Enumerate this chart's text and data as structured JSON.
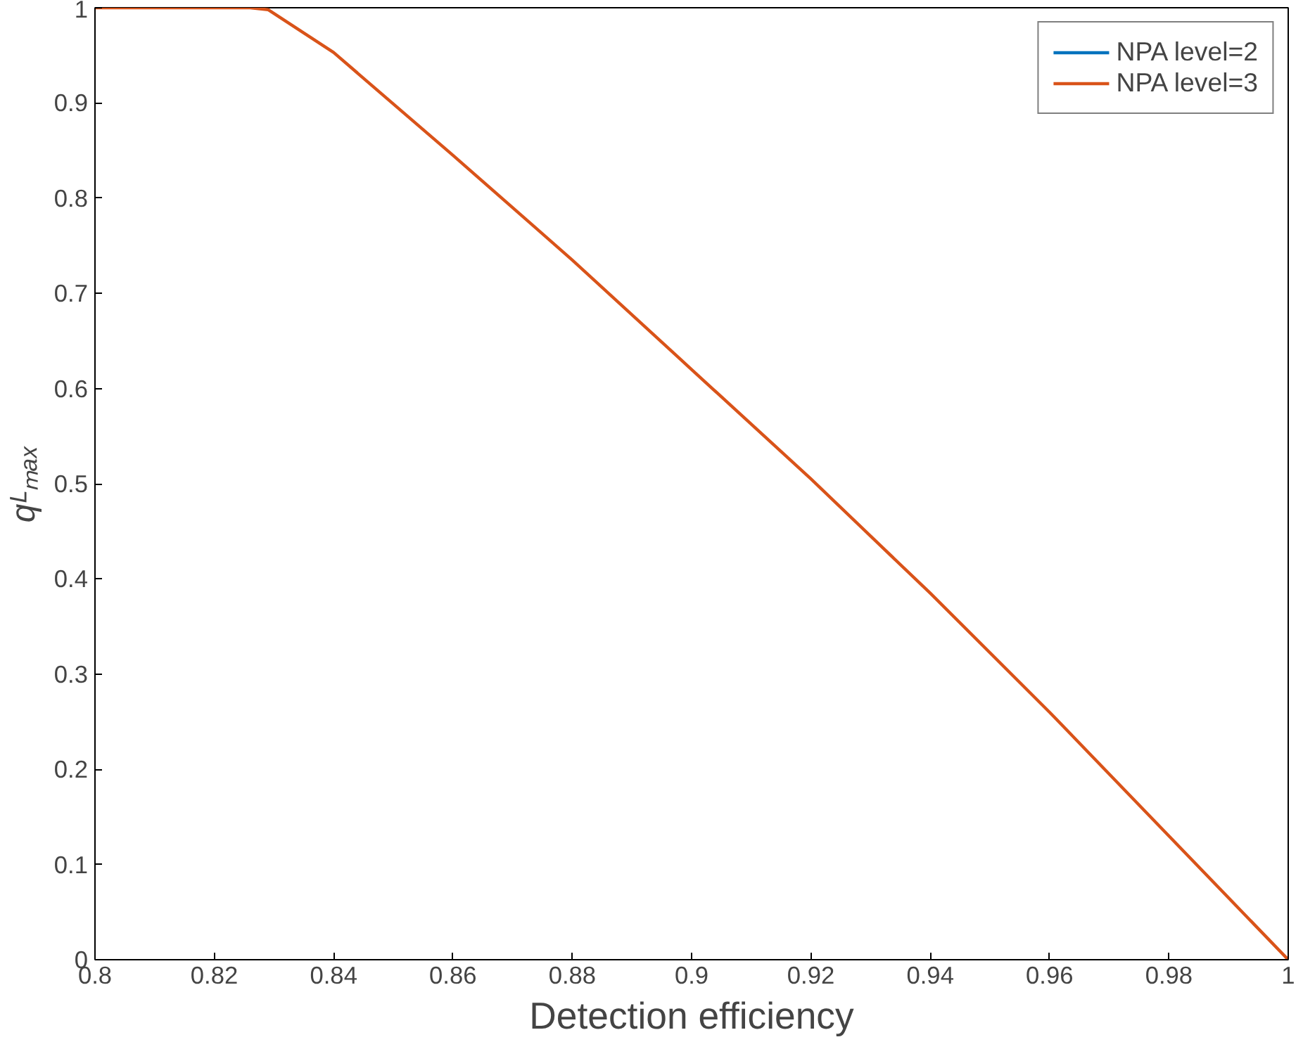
{
  "chart_data": {
    "type": "line",
    "xlabel": "Detection efficiency",
    "ylabel": "qᴸₘₐₓ",
    "x": [
      0.8,
      0.81,
      0.82,
      0.826,
      0.829,
      0.84,
      0.86,
      0.88,
      0.9,
      0.92,
      0.94,
      0.96,
      0.98,
      1.0
    ],
    "series": [
      {
        "name": "NPA level=2",
        "color": "#0072bd",
        "values": [
          null,
          null,
          null,
          null,
          null,
          null,
          null,
          null,
          null,
          null,
          null,
          null,
          null,
          null
        ]
      },
      {
        "name": "NPA level=3",
        "color": "#d95319",
        "values": [
          1,
          1,
          1,
          1,
          0.998,
          0.953,
          0.845,
          0.735,
          0.62,
          0.505,
          0.385,
          0.26,
          0.13,
          0
        ]
      }
    ],
    "xlim": [
      0.8,
      1
    ],
    "ylim": [
      0,
      1
    ],
    "xticks": [
      0.8,
      0.82,
      0.84,
      0.86,
      0.88,
      0.9,
      0.92,
      0.94,
      0.96,
      0.98,
      1
    ],
    "yticks": [
      0,
      0.1,
      0.2,
      0.3,
      0.4,
      0.5,
      0.6,
      0.7,
      0.8,
      0.9,
      1
    ],
    "grid": false,
    "legend": "top right",
    "line_style": "solid",
    "marker": "none"
  }
}
